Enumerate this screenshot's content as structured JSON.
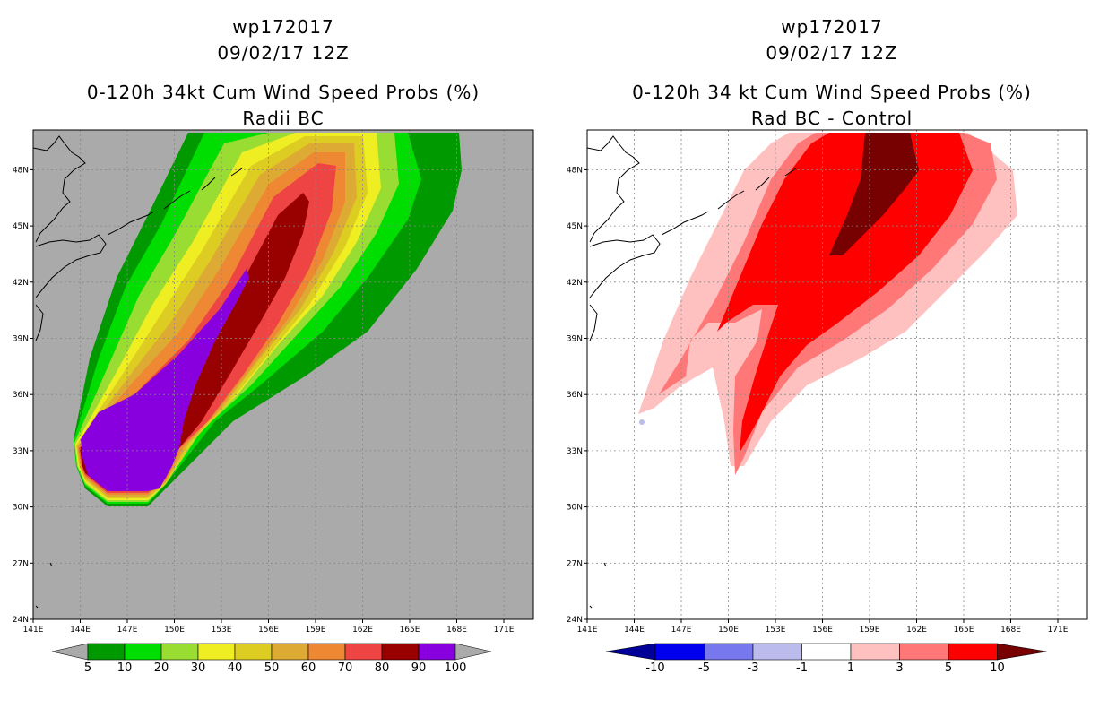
{
  "left_panel": {
    "title_line1": "wp172017",
    "title_line2": "09/02/17 12Z",
    "title_line3": "0-120h 34kt Cum Wind Speed Probs (%)",
    "title_line4": "Radii BC",
    "colorbar_labels": [
      "5",
      "10",
      "20",
      "30",
      "40",
      "50",
      "60",
      "70",
      "80",
      "90",
      "100"
    ],
    "colorbar_colors": [
      "#009900",
      "#00dd00",
      "#99dd33",
      "#eeee22",
      "#ddcc22",
      "#ddaa33",
      "#ee8833",
      "#ee4444",
      "#990000",
      "#8800dd"
    ],
    "background_color": "#aaaaaa"
  },
  "right_panel": {
    "title_line1": "wp172017",
    "title_line2": "09/02/17 12Z",
    "title_line3": "0-120h 34 kt Cum Wind Speed Probs (%)",
    "title_line4": "Rad BC - Control",
    "colorbar_labels": [
      "-10",
      "-5",
      "-3",
      "-1",
      "1",
      "3",
      "5",
      "10"
    ],
    "colorbar_colors": [
      "#000099",
      "#0000ee",
      "#7777ee",
      "#bbbbee",
      "#ffffff",
      "#ffc0c0",
      "#ff7777",
      "#ff0000",
      "#770000"
    ],
    "background_color": "#ffffff"
  },
  "axes": {
    "x_ticks": [
      "141E",
      "144E",
      "147E",
      "150E",
      "153E",
      "156E",
      "159E",
      "162E",
      "165E",
      "168E",
      "171E"
    ],
    "y_ticks": [
      "24N",
      "27N",
      "30N",
      "33N",
      "36N",
      "39N",
      "42N",
      "45N",
      "48N"
    ]
  }
}
